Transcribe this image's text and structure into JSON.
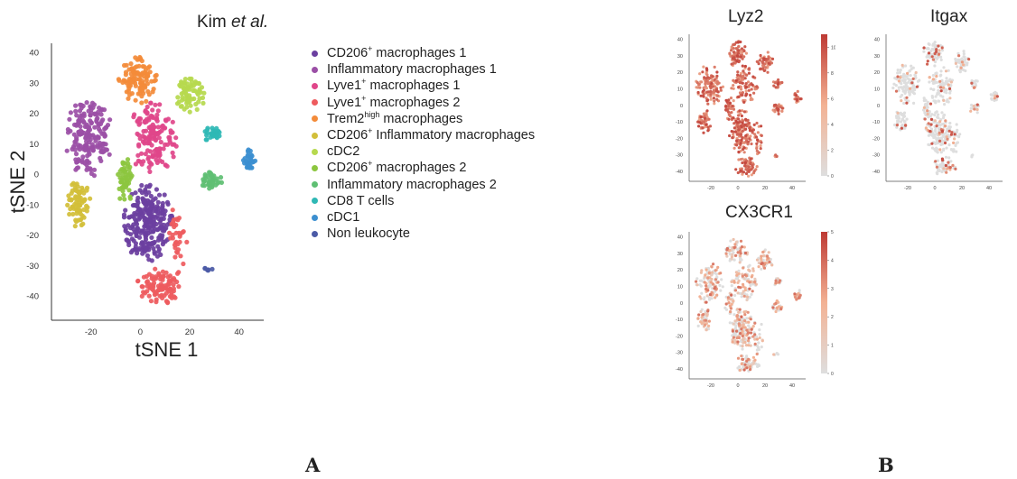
{
  "panel_a": {
    "title_main": "Kim ",
    "title_em": "et al.",
    "figure_label": "A"
  },
  "panel_b": {
    "figure_label": "B"
  },
  "chart_data": [
    {
      "type": "scatter",
      "title": "Kim et al.",
      "xlabel": "tSNE 1",
      "ylabel": "tSNE 2",
      "xlim": [
        -36,
        50
      ],
      "ylim": [
        -48,
        43
      ],
      "xticks": [
        -20,
        0,
        20,
        40
      ],
      "yticks": [
        40,
        30,
        20,
        10,
        0,
        -10,
        -20,
        -30,
        -40
      ],
      "grid": false,
      "legend_position": "right",
      "series": [
        {
          "name": "CD206⁺ macrophages 1",
          "name_main": "CD206",
          "sup": "+",
          "name_rest": " macrophages 1",
          "color": "#6b3fa0",
          "clusters": [
            {
              "cx": 3,
              "cy": -16,
              "rx": 10,
              "ry": 13,
              "n": 260
            }
          ]
        },
        {
          "name": "Inflammatory macrophages 1",
          "name_main": "Inflammatory macrophages 1",
          "sup": "",
          "name_rest": "",
          "color": "#9b4fa6",
          "clusters": [
            {
              "cx": -21,
              "cy": 12,
              "rx": 10,
              "ry": 13,
              "n": 190
            }
          ]
        },
        {
          "name": "Lyve1⁺ macrophages 1",
          "name_main": "Lyve1",
          "sup": "+",
          "name_rest": " macrophages 1",
          "color": "#e0468a",
          "clusters": [
            {
              "cx": 5,
              "cy": 12,
              "rx": 10,
              "ry": 12,
              "n": 150
            }
          ]
        },
        {
          "name": "Lyve1⁺ macrophages 2",
          "name_main": "Lyve1",
          "sup": "+",
          "name_rest": " macrophages 2",
          "color": "#ee5b5e",
          "clusters": [
            {
              "cx": 7,
              "cy": -37,
              "rx": 9,
              "ry": 6,
              "n": 100
            },
            {
              "cx": 15,
              "cy": -22,
              "rx": 4,
              "ry": 12,
              "n": 35
            }
          ]
        },
        {
          "name": "Trem2ʰⁱᵍʰ macrophages",
          "name_main": "Trem2",
          "sup": "high",
          "name_rest": " macrophages",
          "color": "#f38b3a",
          "clusters": [
            {
              "cx": -1,
              "cy": 31,
              "rx": 8,
              "ry": 8,
              "n": 110
            }
          ]
        },
        {
          "name": "CD206⁺ Inflammatory macrophages",
          "name_main": "CD206",
          "sup": "+",
          "name_rest": " Inflammatory macrophages",
          "color": "#d2bf3a",
          "clusters": [
            {
              "cx": -25,
              "cy": -10,
              "rx": 5,
              "ry": 8,
              "n": 75
            }
          ]
        },
        {
          "name": "cDC2",
          "name_main": "cDC2",
          "sup": "",
          "name_rest": "",
          "color": "#b6d94e",
          "clusters": [
            {
              "cx": 20,
              "cy": 26,
              "rx": 6,
              "ry": 7,
              "n": 75
            }
          ]
        },
        {
          "name": "CD206⁺ macrophages 2",
          "name_main": "CD206",
          "sup": "+",
          "name_rest": " macrophages 2",
          "color": "#8cc63f",
          "clusters": [
            {
              "cx": -6,
              "cy": -2,
              "rx": 3.5,
              "ry": 8,
              "n": 55
            }
          ]
        },
        {
          "name": "Inflammatory macrophages 2",
          "name_main": "Inflammatory macrophages 2",
          "sup": "",
          "name_rest": "",
          "color": "#5fbf73",
          "clusters": [
            {
              "cx": 29,
              "cy": -2,
              "rx": 4.5,
              "ry": 3.5,
              "n": 40
            }
          ]
        },
        {
          "name": "CD8 T cells",
          "name_main": "CD8 T cells",
          "sup": "",
          "name_rest": "",
          "color": "#2fb8b5",
          "clusters": [
            {
              "cx": 29,
              "cy": 13,
              "rx": 4,
              "ry": 2.5,
              "n": 28
            }
          ]
        },
        {
          "name": "cDC1",
          "name_main": "cDC1",
          "sup": "",
          "name_rest": "",
          "color": "#3c8fd0",
          "clusters": [
            {
              "cx": 44,
              "cy": 5,
              "rx": 3,
              "ry": 3.5,
              "n": 32
            }
          ]
        },
        {
          "name": "Non leukocyte",
          "name_main": "Non leukocyte",
          "sup": "",
          "name_rest": "",
          "color": "#4b5aa6",
          "clusters": [
            {
              "cx": 28,
              "cy": -31,
              "rx": 2,
              "ry": 1,
              "n": 6
            }
          ]
        }
      ]
    },
    {
      "type": "scatter",
      "title": "Lyz2",
      "xlim": [
        -36,
        50
      ],
      "ylim": [
        -46,
        43
      ],
      "xticks": [
        -20,
        0,
        20,
        40
      ],
      "yticks": [
        40,
        30,
        20,
        10,
        0,
        -10,
        -20,
        -30,
        -40
      ],
      "colorbar": {
        "min": 0,
        "max": 11,
        "ticks": [
          0,
          2,
          4,
          6,
          8,
          10
        ]
      },
      "expression": "high"
    },
    {
      "type": "scatter",
      "title": "Itgax",
      "xlim": [
        -36,
        50
      ],
      "ylim": [
        -46,
        43
      ],
      "xticks": [
        -20,
        0,
        20,
        40
      ],
      "yticks": [
        40,
        30,
        20,
        10,
        0,
        -10,
        -20,
        -30,
        -40
      ],
      "colorbar": {
        "min": 0,
        "max": 5,
        "ticks": [
          0,
          1,
          2,
          3,
          4,
          5
        ]
      },
      "expression": "sparse"
    },
    {
      "type": "scatter",
      "title": "CX3CR1",
      "xlim": [
        -36,
        50
      ],
      "ylim": [
        -46,
        43
      ],
      "xticks": [
        -20,
        0,
        20,
        40
      ],
      "yticks": [
        40,
        30,
        20,
        10,
        0,
        -10,
        -20,
        -30,
        -40
      ],
      "colorbar": {
        "min": 0,
        "max": 5,
        "ticks": [
          0,
          1,
          2,
          3,
          4,
          5
        ]
      },
      "expression": "medium"
    }
  ]
}
